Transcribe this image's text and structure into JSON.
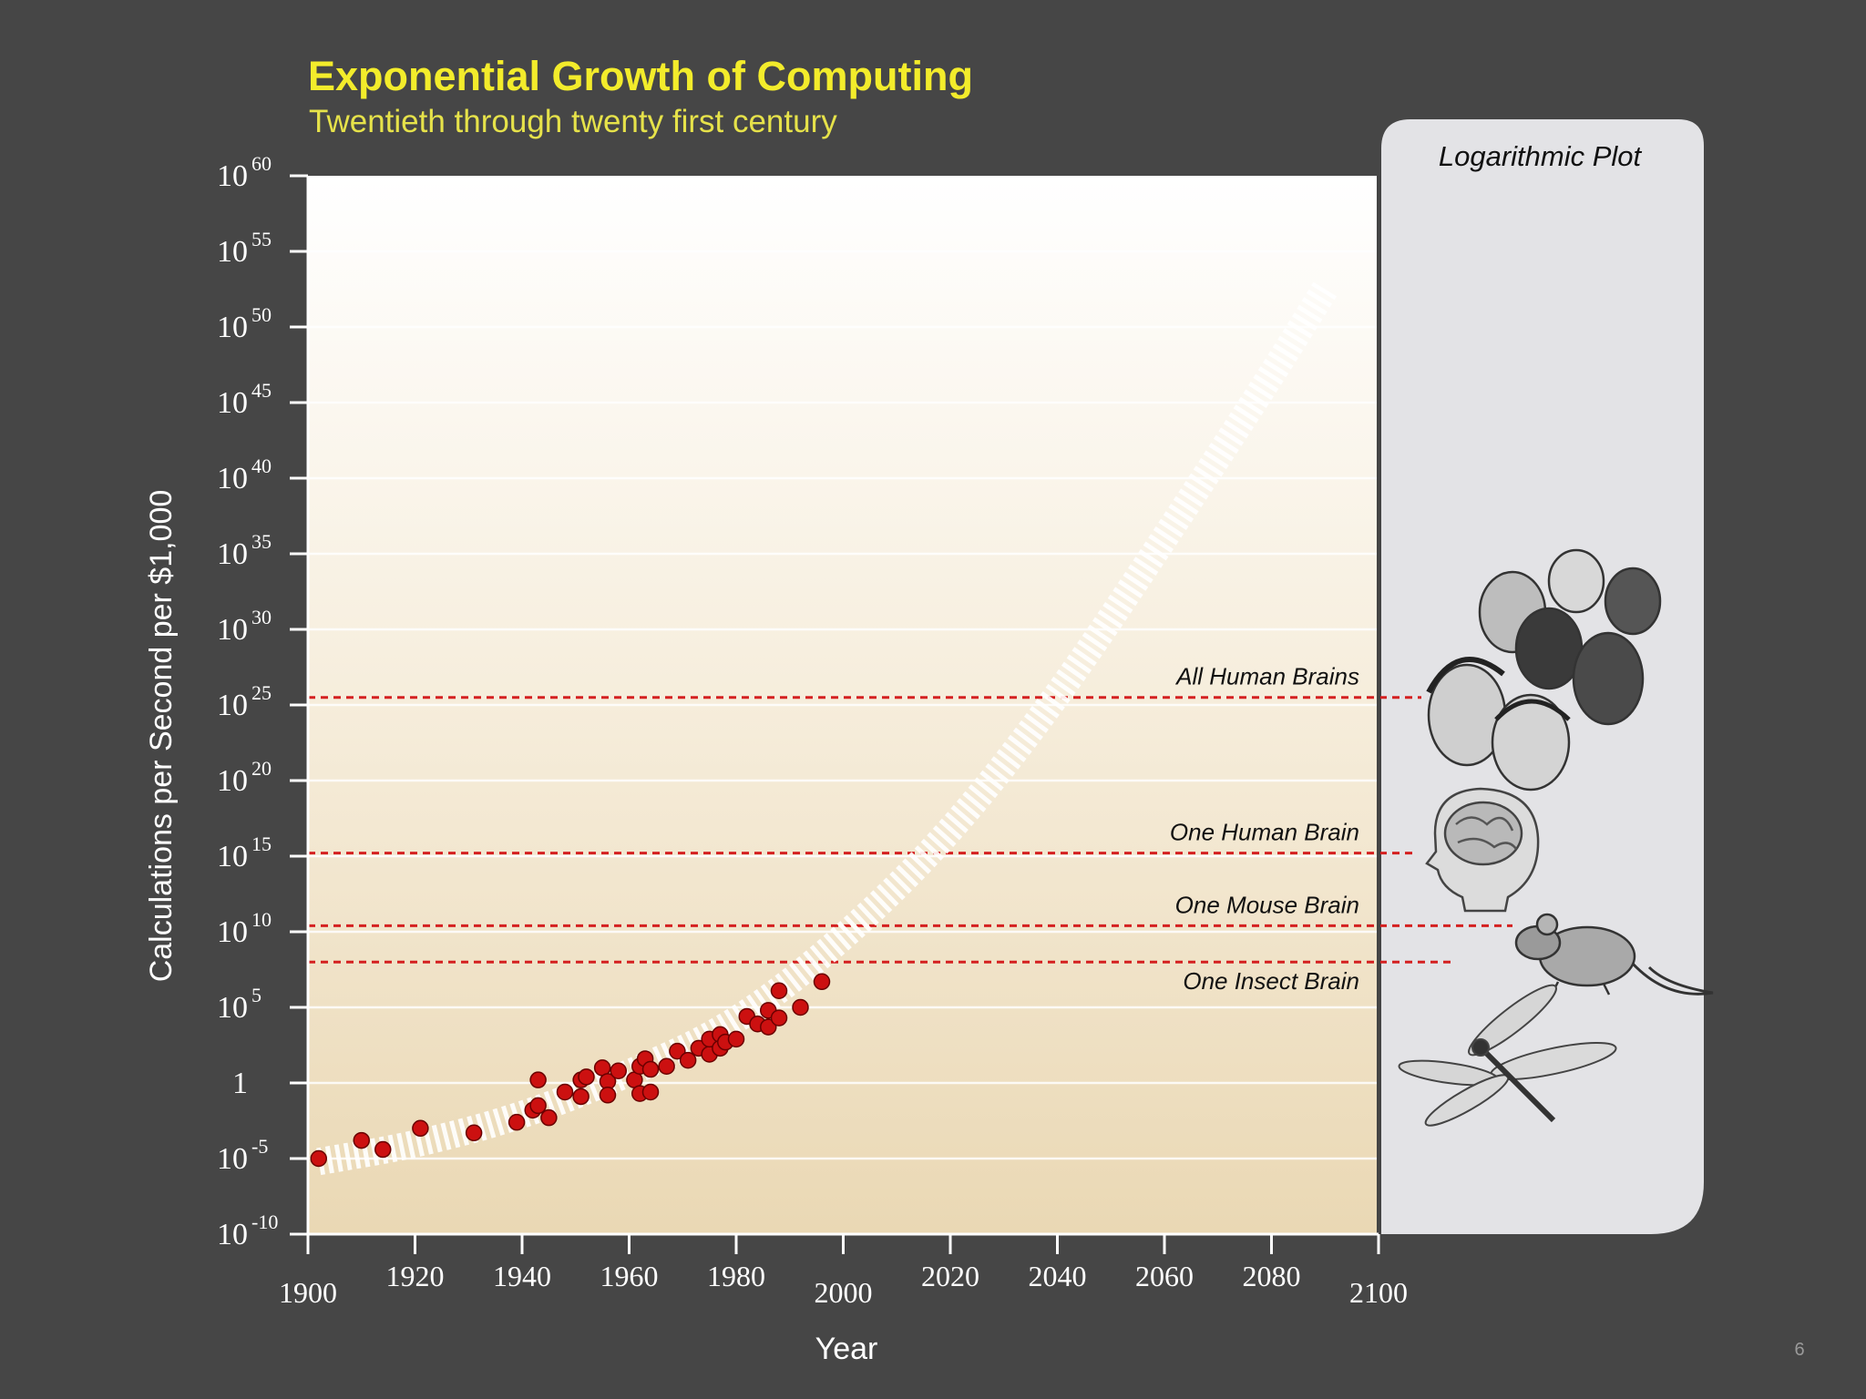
{
  "title": "Exponential Growth of Computing",
  "subtitle": "Twentieth through twenty first century",
  "page_number": "6",
  "chart_data": {
    "type": "scatter",
    "title": "Exponential Growth of Computing",
    "subtitle": "Twentieth through twenty first century",
    "xlabel": "Year",
    "ylabel": "Calculations per Second per $1,000",
    "yscale": "log",
    "xlim": [
      1900,
      2100
    ],
    "ylim_exponent": [
      -10,
      60
    ],
    "x_ticks": [
      1900,
      1920,
      1940,
      1960,
      1980,
      2000,
      2020,
      2040,
      2060,
      2080,
      2100
    ],
    "y_ticks": [
      {
        "base": "10",
        "exp": "-10",
        "value": -10
      },
      {
        "base": "10",
        "exp": "-5",
        "value": -5
      },
      {
        "base": "1",
        "exp": "",
        "value": 0
      },
      {
        "base": "10",
        "exp": "5",
        "value": 5
      },
      {
        "base": "10",
        "exp": "10",
        "value": 10
      },
      {
        "base": "10",
        "exp": "15",
        "value": 15
      },
      {
        "base": "10",
        "exp": "20",
        "value": 20
      },
      {
        "base": "10",
        "exp": "25",
        "value": 25
      },
      {
        "base": "10",
        "exp": "30",
        "value": 30
      },
      {
        "base": "10",
        "exp": "35",
        "value": 35
      },
      {
        "base": "10",
        "exp": "40",
        "value": 40
      },
      {
        "base": "10",
        "exp": "45",
        "value": 45
      },
      {
        "base": "10",
        "exp": "50",
        "value": 50
      },
      {
        "base": "10",
        "exp": "55",
        "value": 55
      },
      {
        "base": "10",
        "exp": "60",
        "value": 60
      }
    ],
    "grid": true,
    "series": [
      {
        "type": "scatter",
        "color": "#cc1010",
        "points": [
          [
            1902,
            -5.0
          ],
          [
            1910,
            -3.8
          ],
          [
            1914,
            -4.4
          ],
          [
            1921,
            -3.0
          ],
          [
            1931,
            -3.3
          ],
          [
            1939,
            -2.6
          ],
          [
            1942,
            -1.8
          ],
          [
            1943,
            0.2
          ],
          [
            1943,
            -1.5
          ],
          [
            1945,
            -2.3
          ],
          [
            1948,
            -0.6
          ],
          [
            1951,
            -0.9
          ],
          [
            1951,
            0.2
          ],
          [
            1952,
            0.4
          ],
          [
            1955,
            1.0
          ],
          [
            1956,
            0.1
          ],
          [
            1956,
            -0.8
          ],
          [
            1958,
            0.8
          ],
          [
            1961,
            0.2
          ],
          [
            1962,
            -0.7
          ],
          [
            1962,
            1.1
          ],
          [
            1963,
            1.6
          ],
          [
            1964,
            -0.6
          ],
          [
            1964,
            0.9
          ],
          [
            1967,
            1.1
          ],
          [
            1969,
            2.1
          ],
          [
            1971,
            1.5
          ],
          [
            1973,
            2.3
          ],
          [
            1975,
            1.9
          ],
          [
            1975,
            2.9
          ],
          [
            1977,
            3.2
          ],
          [
            1977,
            2.3
          ],
          [
            1978,
            2.7
          ],
          [
            1980,
            2.9
          ],
          [
            1982,
            4.4
          ],
          [
            1984,
            3.9
          ],
          [
            1986,
            3.7
          ],
          [
            1986,
            4.8
          ],
          [
            1988,
            6.1
          ],
          [
            1988,
            4.3
          ],
          [
            1992,
            5.0
          ],
          [
            1996,
            6.7
          ]
        ]
      },
      {
        "type": "trend",
        "style": "dashed-white",
        "points": [
          [
            1902,
            -5.2
          ],
          [
            1920,
            -4.1
          ],
          [
            1940,
            -2.2
          ],
          [
            1960,
            0.6
          ],
          [
            1980,
            3.9
          ],
          [
            2000,
            9.5
          ],
          [
            2020,
            16.5
          ],
          [
            2040,
            25.5
          ],
          [
            2060,
            36
          ],
          [
            2080,
            46.8
          ],
          [
            2090,
            52.5
          ]
        ]
      }
    ],
    "reference_lines": [
      {
        "label": "All Human Brains",
        "value": 25.5
      },
      {
        "label": "One Human Brain",
        "value": 15.2
      },
      {
        "label": "One Mouse Brain",
        "value": 10.4
      },
      {
        "label": "One Insect Brain",
        "value": 8.0
      }
    ],
    "side_panel": {
      "title": "Logarithmic Plot",
      "illustrations": [
        "human-heads-illustration",
        "brain-head-illustration",
        "mouse-illustration",
        "dragonfly-illustration"
      ]
    },
    "colors": {
      "background": "#464646",
      "title": "#f3ec2b",
      "data_point": "#cc1010",
      "reference_line": "#d42020"
    }
  }
}
